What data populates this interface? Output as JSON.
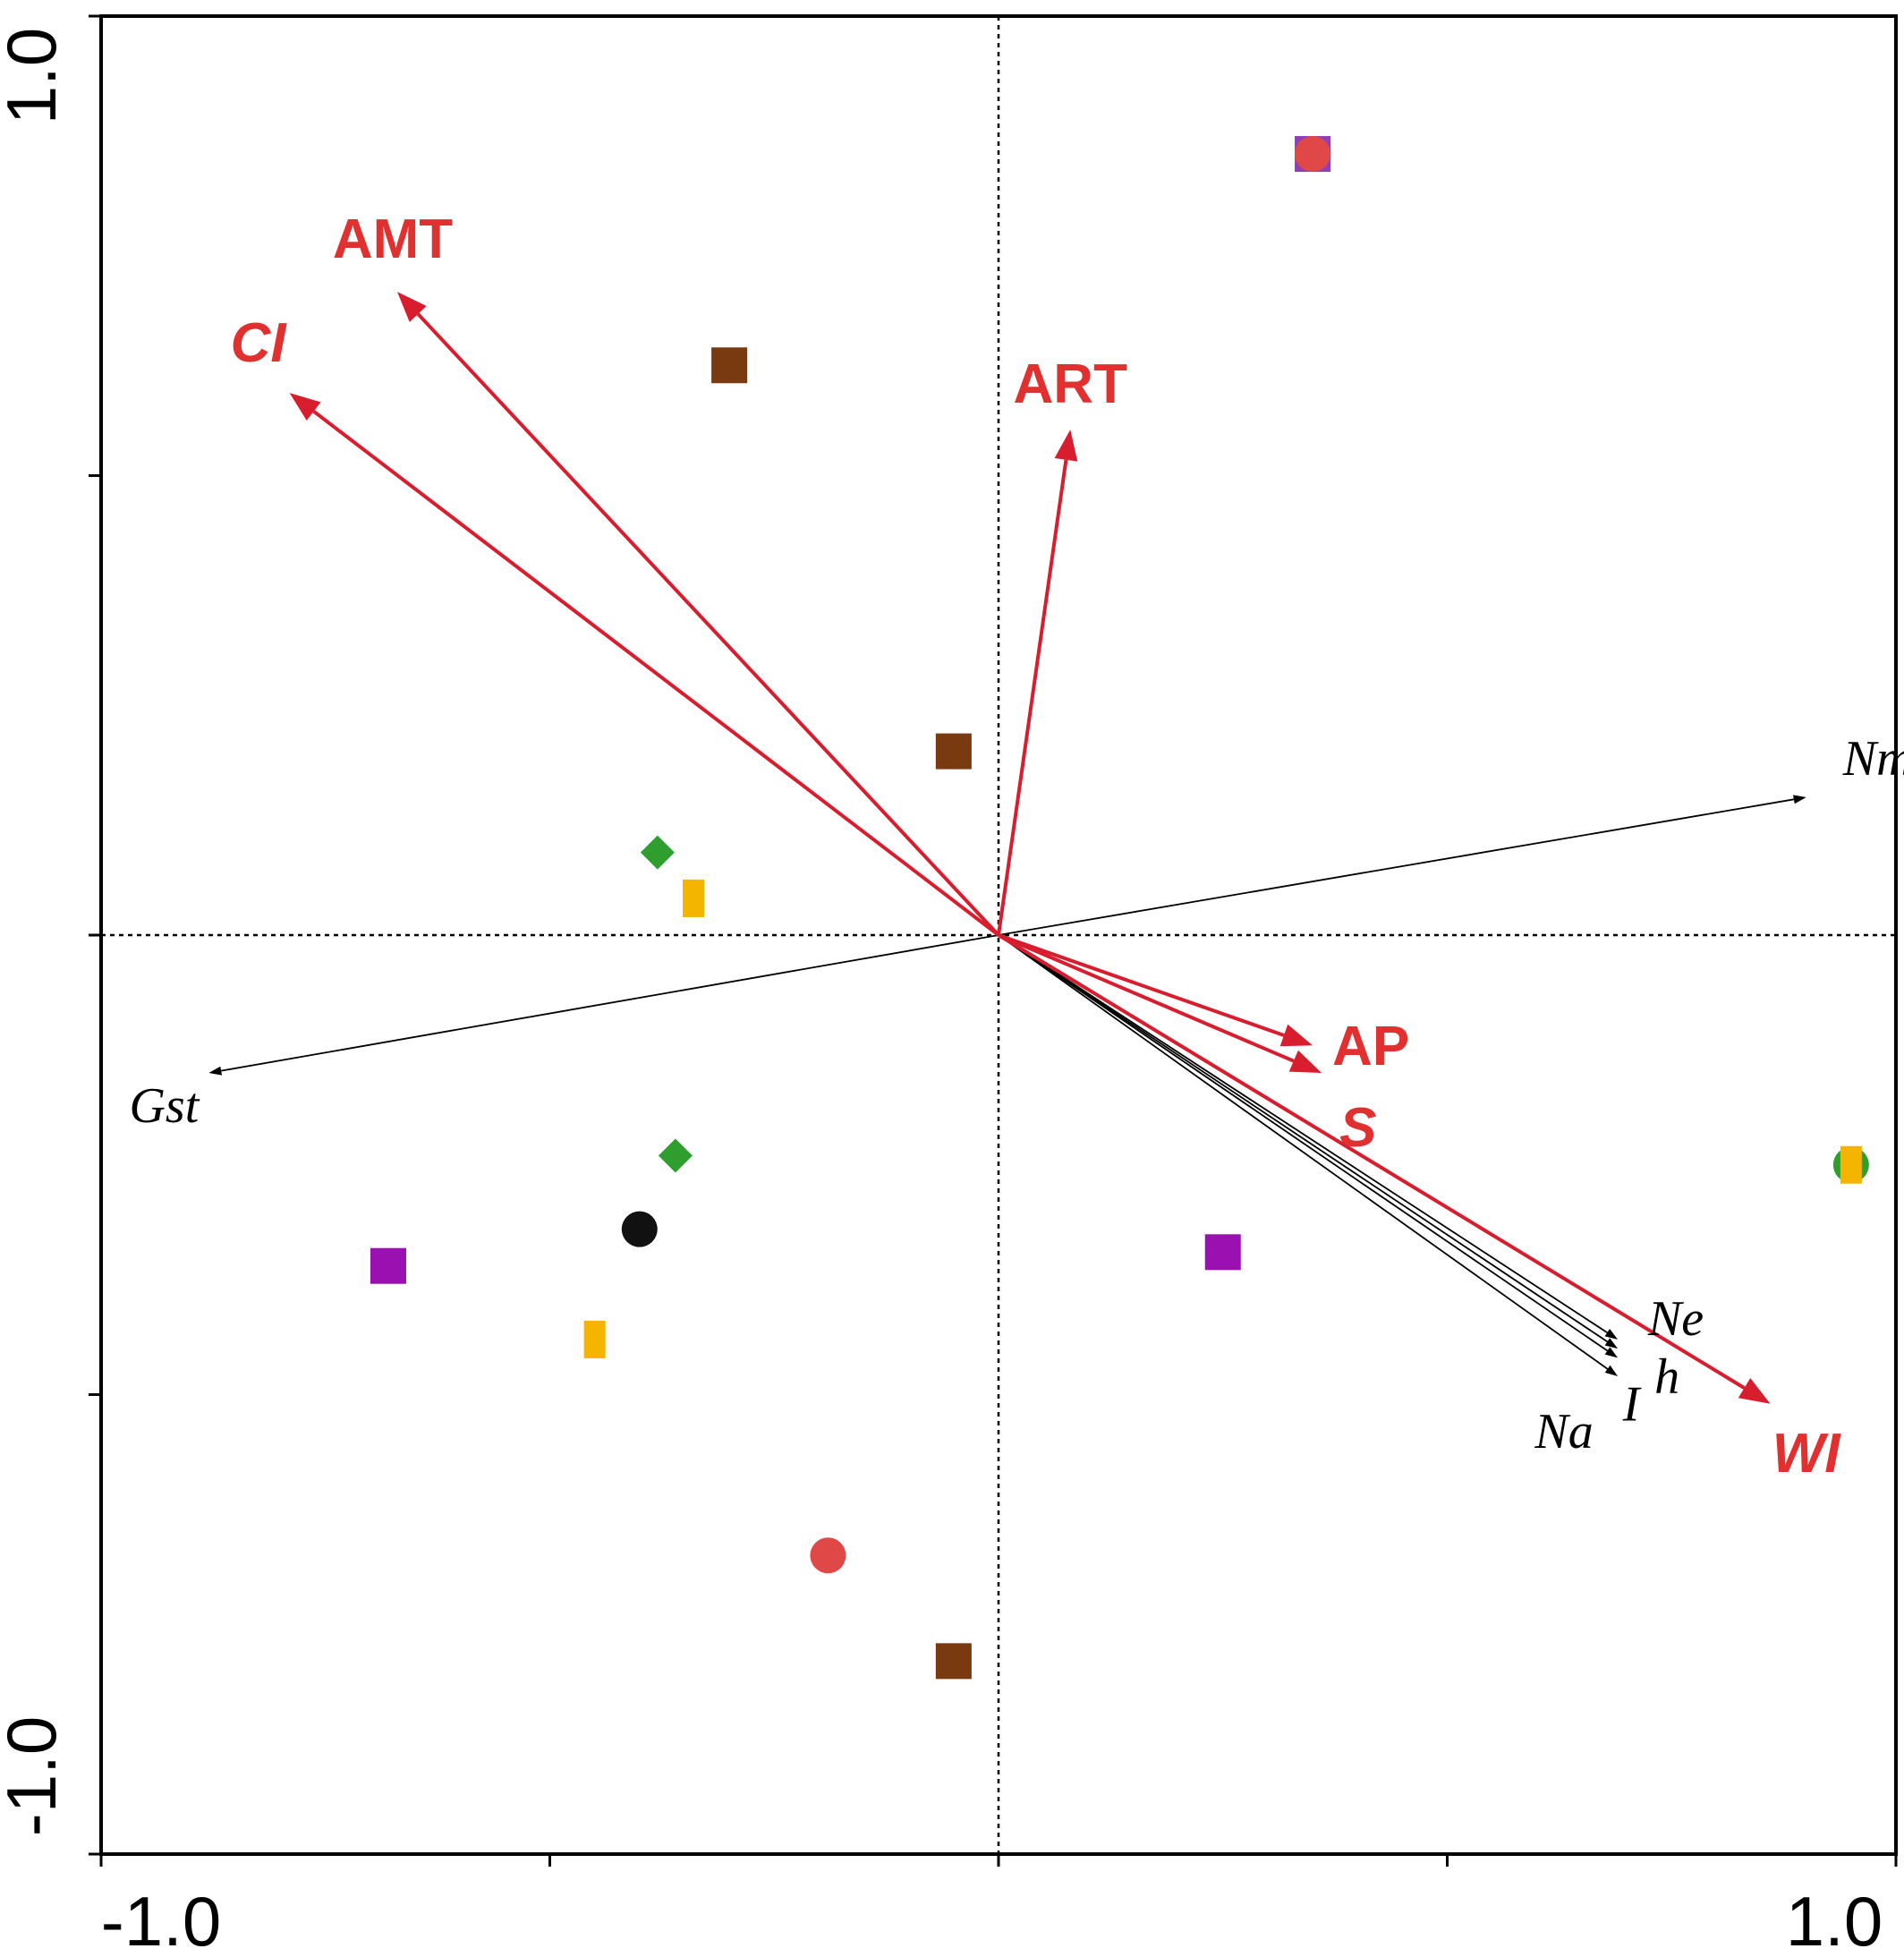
{
  "chart_data": {
    "type": "scatter",
    "subtype": "ordination biplot",
    "title": "",
    "xlabel": "",
    "ylabel": "",
    "xlim": [
      -1.0,
      1.0
    ],
    "ylim": [
      -1.0,
      1.0
    ],
    "x_tick_labels": [
      "-1.0",
      "1.0"
    ],
    "y_tick_labels": [
      "1.0",
      "-1.0"
    ],
    "x_ticks": [
      -1.0,
      -0.5,
      0.0,
      0.5,
      1.0
    ],
    "y_ticks": [
      -1.0,
      -0.5,
      0.0,
      0.5,
      1.0
    ],
    "reference_lines": {
      "x": 0,
      "y": 0,
      "style": "dotted"
    },
    "environmental_vectors": [
      {
        "name": "AMT",
        "x": -0.67,
        "y": 0.7
      },
      {
        "name": "CI",
        "x": -0.79,
        "y": 0.59,
        "italic": true
      },
      {
        "name": "ART",
        "x": 0.08,
        "y": 0.55
      },
      {
        "name": "AP",
        "x": 0.35,
        "y": -0.12
      },
      {
        "name": "S",
        "x": 0.36,
        "y": -0.15,
        "italic": true
      },
      {
        "name": "WI",
        "x": 0.86,
        "y": -0.51,
        "italic": true
      }
    ],
    "genetic_vectors": [
      {
        "name": "Nm",
        "x": 0.9,
        "y": 0.15
      },
      {
        "name": "Gst",
        "x": -0.88,
        "y": -0.15
      },
      {
        "name": "Ne",
        "x": 0.69,
        "y": -0.44
      },
      {
        "name": "h",
        "x": 0.69,
        "y": -0.45
      },
      {
        "name": "I",
        "x": 0.69,
        "y": -0.46
      },
      {
        "name": "Na",
        "x": 0.69,
        "y": -0.48
      }
    ],
    "points": [
      {
        "shape": "square",
        "color": "#8e3fb8",
        "x": 0.35,
        "y": 0.85
      },
      {
        "shape": "circle",
        "color": "#e04848",
        "x": 0.35,
        "y": 0.85
      },
      {
        "shape": "square",
        "color": "#7a3a10",
        "x": -0.3,
        "y": 0.62
      },
      {
        "shape": "square",
        "color": "#7a3a10",
        "x": -0.05,
        "y": 0.2
      },
      {
        "shape": "diamond",
        "color": "#2e9e2e",
        "x": -0.38,
        "y": 0.09
      },
      {
        "shape": "bar",
        "color": "#f4b400",
        "x": -0.34,
        "y": 0.04
      },
      {
        "shape": "diamond",
        "color": "#2e9e2e",
        "x": -0.36,
        "y": -0.24
      },
      {
        "shape": "circle",
        "color": "#111111",
        "x": -0.4,
        "y": -0.32
      },
      {
        "shape": "square",
        "color": "#9a10b0",
        "x": -0.68,
        "y": -0.36
      },
      {
        "shape": "bar",
        "color": "#f4b400",
        "x": -0.45,
        "y": -0.44
      },
      {
        "shape": "square",
        "color": "#9a10b0",
        "x": 0.25,
        "y": -0.345
      },
      {
        "shape": "circle",
        "color": "#2e9e2e",
        "x": 0.95,
        "y": -0.25
      },
      {
        "shape": "bar",
        "color": "#f4b400",
        "x": 0.95,
        "y": -0.25
      },
      {
        "shape": "circle",
        "color": "#e04848",
        "x": -0.19,
        "y": -0.675
      },
      {
        "shape": "square",
        "color": "#7a3a10",
        "x": -0.05,
        "y": -0.79
      }
    ],
    "colors": {
      "environmental": "#d81e2e",
      "environmental_label": "#e03030",
      "genetic": "#000000"
    }
  }
}
